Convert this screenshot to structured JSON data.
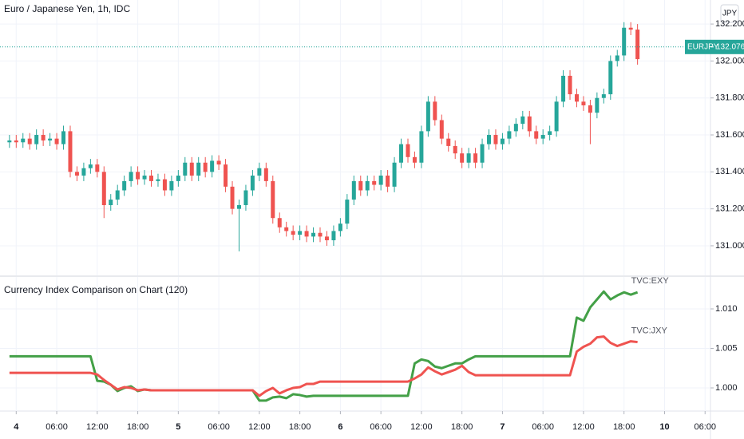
{
  "chart_data": [
    {
      "type": "candlestick",
      "title": "Euro / Japanese Yen, 1h, IDC",
      "currency": "JPY",
      "symbol": "EURJPY",
      "last_price": 132.076,
      "up_color": "#26a69a",
      "down_color": "#ef5350",
      "grid": true,
      "xlim": [
        -2.4,
        102.8
      ],
      "ylim": [
        130.84,
        132.33
      ],
      "yticks": [
        {
          "value": 131,
          "label": "131.000"
        },
        {
          "value": 131.2,
          "label": "131.200"
        },
        {
          "value": 131.4,
          "label": "131.400"
        },
        {
          "value": 131.6,
          "label": "131.600"
        },
        {
          "value": 131.8,
          "label": "131.800"
        },
        {
          "value": 132,
          "label": "132.000"
        },
        {
          "value": 132.2,
          "label": "132.200"
        }
      ],
      "x": [
        -1,
        0,
        1,
        2,
        3,
        4,
        5,
        6,
        7,
        8,
        9,
        10,
        11,
        12,
        13,
        14,
        15,
        16,
        17,
        18,
        19,
        20,
        21,
        22,
        23,
        24,
        25,
        26,
        27,
        28,
        29,
        30,
        31,
        32,
        33,
        34,
        35,
        36,
        37,
        38,
        39,
        40,
        41,
        42,
        43,
        44,
        45,
        46,
        47,
        48,
        49,
        50,
        51,
        52,
        53,
        54,
        55,
        56,
        57,
        58,
        59,
        60,
        61,
        62,
        63,
        64,
        65,
        66,
        67,
        68,
        69,
        70,
        71,
        72,
        73,
        74,
        75,
        76,
        77,
        78,
        79,
        80,
        81,
        82,
        83,
        84,
        85,
        86,
        87,
        88,
        89,
        90,
        91,
        92
      ],
      "open": [
        131.56,
        131.57,
        131.56,
        131.58,
        131.55,
        131.6,
        131.57,
        131.58,
        131.55,
        131.62,
        131.4,
        131.38,
        131.42,
        131.44,
        131.4,
        131.22,
        131.25,
        131.3,
        131.35,
        131.4,
        131.36,
        131.38,
        131.35,
        131.36,
        131.3,
        131.35,
        131.38,
        131.45,
        131.38,
        131.45,
        131.4,
        131.46,
        131.44,
        131.32,
        131.2,
        131.22,
        131.3,
        131.38,
        131.42,
        131.35,
        131.15,
        131.1,
        131.08,
        131.06,
        131.08,
        131.05,
        131.07,
        131.05,
        131.03,
        131.08,
        131.12,
        131.25,
        131.35,
        131.3,
        131.35,
        131.33,
        131.38,
        131.32,
        131.45,
        131.55,
        131.48,
        131.45,
        131.62,
        131.78,
        131.68,
        131.58,
        131.54,
        131.5,
        131.45,
        131.5,
        131.45,
        131.55,
        131.6,
        131.55,
        131.58,
        131.62,
        131.66,
        131.7,
        131.62,
        131.58,
        131.6,
        131.62,
        131.78,
        131.92,
        131.82,
        131.78,
        131.76,
        131.72,
        131.8,
        131.82,
        132.0,
        132.03,
        132.18,
        132.17
      ],
      "high": [
        131.6,
        131.6,
        131.61,
        131.61,
        131.63,
        131.63,
        131.61,
        131.61,
        131.65,
        131.65,
        131.43,
        131.45,
        131.47,
        131.47,
        131.43,
        131.28,
        131.33,
        131.38,
        131.43,
        131.43,
        131.41,
        131.41,
        131.39,
        131.39,
        131.38,
        131.41,
        131.48,
        131.48,
        131.48,
        131.48,
        131.49,
        131.49,
        131.47,
        131.35,
        131.25,
        131.33,
        131.41,
        131.45,
        131.45,
        131.38,
        131.18,
        131.13,
        131.11,
        131.11,
        131.11,
        131.1,
        131.1,
        131.08,
        131.11,
        131.15,
        131.28,
        131.38,
        131.38,
        131.38,
        131.38,
        131.41,
        131.41,
        131.48,
        131.58,
        131.58,
        131.51,
        131.65,
        131.81,
        131.81,
        131.71,
        131.61,
        131.57,
        131.53,
        131.53,
        131.53,
        131.58,
        131.63,
        131.63,
        131.61,
        131.65,
        131.69,
        131.73,
        131.73,
        131.65,
        131.63,
        131.65,
        131.81,
        131.95,
        131.95,
        131.85,
        131.81,
        131.79,
        131.83,
        131.85,
        132.03,
        132.06,
        132.21,
        132.21,
        132.2
      ],
      "low": [
        131.53,
        131.53,
        131.53,
        131.52,
        131.52,
        131.54,
        131.54,
        131.52,
        131.52,
        131.37,
        131.35,
        131.35,
        131.39,
        131.37,
        131.15,
        131.19,
        131.22,
        131.27,
        131.32,
        131.33,
        131.33,
        131.32,
        131.32,
        131.27,
        131.27,
        131.32,
        131.35,
        131.35,
        131.35,
        131.37,
        131.37,
        131.41,
        131.29,
        131.17,
        130.97,
        131.19,
        131.27,
        131.35,
        131.32,
        131.12,
        131.07,
        131.05,
        131.03,
        131.03,
        131.02,
        131.02,
        131.02,
        131.0,
        131.0,
        131.05,
        131.09,
        131.22,
        131.27,
        131.27,
        131.3,
        131.3,
        131.29,
        131.29,
        131.42,
        131.45,
        131.42,
        131.42,
        131.59,
        131.65,
        131.55,
        131.51,
        131.47,
        131.42,
        131.42,
        131.42,
        131.42,
        131.52,
        131.52,
        131.52,
        131.55,
        131.59,
        131.63,
        131.59,
        131.55,
        131.55,
        131.57,
        131.59,
        131.75,
        131.79,
        131.75,
        131.73,
        131.55,
        131.69,
        131.77,
        131.79,
        131.97,
        132.0,
        132.14,
        131.98
      ],
      "close": [
        131.57,
        131.56,
        131.58,
        131.55,
        131.6,
        131.57,
        131.58,
        131.55,
        131.62,
        131.4,
        131.38,
        131.42,
        131.44,
        131.4,
        131.22,
        131.25,
        131.3,
        131.35,
        131.4,
        131.36,
        131.38,
        131.35,
        131.36,
        131.3,
        131.35,
        131.38,
        131.45,
        131.38,
        131.45,
        131.4,
        131.46,
        131.44,
        131.32,
        131.2,
        131.22,
        131.3,
        131.38,
        131.42,
        131.35,
        131.15,
        131.1,
        131.08,
        131.06,
        131.08,
        131.05,
        131.07,
        131.05,
        131.03,
        131.08,
        131.12,
        131.25,
        131.35,
        131.3,
        131.35,
        131.33,
        131.38,
        131.32,
        131.45,
        131.55,
        131.48,
        131.45,
        131.62,
        131.78,
        131.68,
        131.58,
        131.54,
        131.5,
        131.45,
        131.5,
        131.45,
        131.55,
        131.6,
        131.55,
        131.58,
        131.62,
        131.66,
        131.7,
        131.62,
        131.58,
        131.6,
        131.62,
        131.78,
        131.92,
        131.82,
        131.78,
        131.76,
        131.72,
        131.8,
        131.82,
        132.0,
        132.03,
        132.18,
        132.17,
        132.01
      ]
    },
    {
      "type": "line",
      "title": "Currency Index Comparison on Chart (120)",
      "grid": true,
      "xlim": [
        -2.4,
        102.8
      ],
      "ylim": [
        0.99707,
        1.01404
      ],
      "yticks": [
        {
          "value": 1,
          "label": "1.000"
        },
        {
          "value": 1.005,
          "label": "1.005"
        },
        {
          "value": 1.01,
          "label": "1.010"
        }
      ],
      "xticks": [
        {
          "value": 0,
          "label": "4"
        },
        {
          "value": 6,
          "label": "06:00"
        },
        {
          "value": 12,
          "label": "12:00"
        },
        {
          "value": 18,
          "label": "18:00"
        },
        {
          "value": 24,
          "label": "5"
        },
        {
          "value": 30,
          "label": "06:00"
        },
        {
          "value": 36,
          "label": "12:00"
        },
        {
          "value": 42,
          "label": "18:00"
        },
        {
          "value": 48,
          "label": "6"
        },
        {
          "value": 54,
          "label": "06:00"
        },
        {
          "value": 60,
          "label": "12:00"
        },
        {
          "value": 66,
          "label": "18:00"
        },
        {
          "value": 72,
          "label": "7"
        },
        {
          "value": 78,
          "label": "06:00"
        },
        {
          "value": 84,
          "label": "12:00"
        },
        {
          "value": 90,
          "label": "18:00"
        },
        {
          "value": 96,
          "label": "10"
        },
        {
          "value": 102,
          "label": "06:00"
        }
      ],
      "x": [
        -1,
        0,
        1,
        2,
        3,
        4,
        5,
        6,
        7,
        8,
        9,
        10,
        11,
        12,
        13,
        14,
        15,
        16,
        17,
        18,
        19,
        20,
        21,
        22,
        23,
        24,
        25,
        26,
        27,
        28,
        29,
        30,
        31,
        32,
        33,
        34,
        35,
        36,
        37,
        38,
        39,
        40,
        41,
        42,
        43,
        44,
        45,
        46,
        47,
        48,
        49,
        50,
        51,
        52,
        53,
        54,
        55,
        56,
        57,
        58,
        59,
        60,
        61,
        62,
        63,
        64,
        65,
        66,
        67,
        68,
        69,
        70,
        71,
        72,
        73,
        74,
        75,
        76,
        77,
        78,
        79,
        80,
        81,
        82,
        83,
        84,
        85,
        86,
        87,
        88,
        89,
        90,
        91,
        92
      ],
      "series": [
        {
          "name": "TVC:EXY",
          "color": "#43a047",
          "values": [
            1.004,
            1.004,
            1.004,
            1.004,
            1.004,
            1.004,
            1.004,
            1.004,
            1.004,
            1.004,
            1.004,
            1.004,
            1.004,
            1.0009,
            1.0008,
            1.0004,
            0.9996,
            1.0,
            1.0002,
            0.9996,
            0.9998,
            0.9997,
            0.9997,
            0.9997,
            0.9997,
            0.9997,
            0.9997,
            0.9997,
            0.9997,
            0.9997,
            0.9997,
            0.9997,
            0.9997,
            0.9997,
            0.9997,
            0.9997,
            0.9997,
            0.9984,
            0.9984,
            0.9988,
            0.9989,
            0.9987,
            0.9992,
            0.9991,
            0.9989,
            0.999,
            0.999,
            0.999,
            0.999,
            0.999,
            0.999,
            0.999,
            0.999,
            0.999,
            0.999,
            0.999,
            0.999,
            0.999,
            0.999,
            0.999,
            1.0031,
            1.0036,
            1.0034,
            1.0027,
            1.0025,
            1.0028,
            1.0031,
            1.0031,
            1.0036,
            1.004,
            1.004,
            1.004,
            1.004,
            1.004,
            1.004,
            1.004,
            1.004,
            1.004,
            1.004,
            1.004,
            1.004,
            1.004,
            1.004,
            1.004,
            1.0089,
            1.0085,
            1.0102,
            1.0112,
            1.0122,
            1.0112,
            1.0117,
            1.0121,
            1.0118,
            1.0121
          ]
        },
        {
          "name": "TVC:JXY",
          "color": "#ef5350",
          "values": [
            1.0019,
            1.0019,
            1.0019,
            1.0019,
            1.0019,
            1.0019,
            1.0019,
            1.0019,
            1.0019,
            1.0019,
            1.0019,
            1.0019,
            1.0019,
            1.0017,
            1.001,
            1.0004,
            0.9998,
            1.0001,
            1.0,
            0.9997,
            0.9998,
            0.9997,
            0.9997,
            0.9997,
            0.9997,
            0.9997,
            0.9997,
            0.9997,
            0.9997,
            0.9997,
            0.9997,
            0.9997,
            0.9997,
            0.9997,
            0.9997,
            0.9997,
            0.9997,
            0.999,
            0.9996,
            1.0,
            0.9993,
            0.9997,
            1.0,
            1.0001,
            1.0005,
            1.0005,
            1.0008,
            1.0008,
            1.0008,
            1.0008,
            1.0008,
            1.0008,
            1.0008,
            1.0008,
            1.0008,
            1.0008,
            1.0008,
            1.0008,
            1.0008,
            1.0008,
            1.0012,
            1.0017,
            1.0026,
            1.0021,
            1.0017,
            1.002,
            1.0023,
            1.0028,
            1.002,
            1.0016,
            1.0016,
            1.0016,
            1.0016,
            1.0016,
            1.0016,
            1.0016,
            1.0016,
            1.0016,
            1.0016,
            1.0016,
            1.0016,
            1.0016,
            1.0016,
            1.0016,
            1.0046,
            1.0052,
            1.0056,
            1.0064,
            1.0065,
            1.0057,
            1.0053,
            1.0056,
            1.0059,
            1.0058
          ]
        }
      ]
    }
  ]
}
